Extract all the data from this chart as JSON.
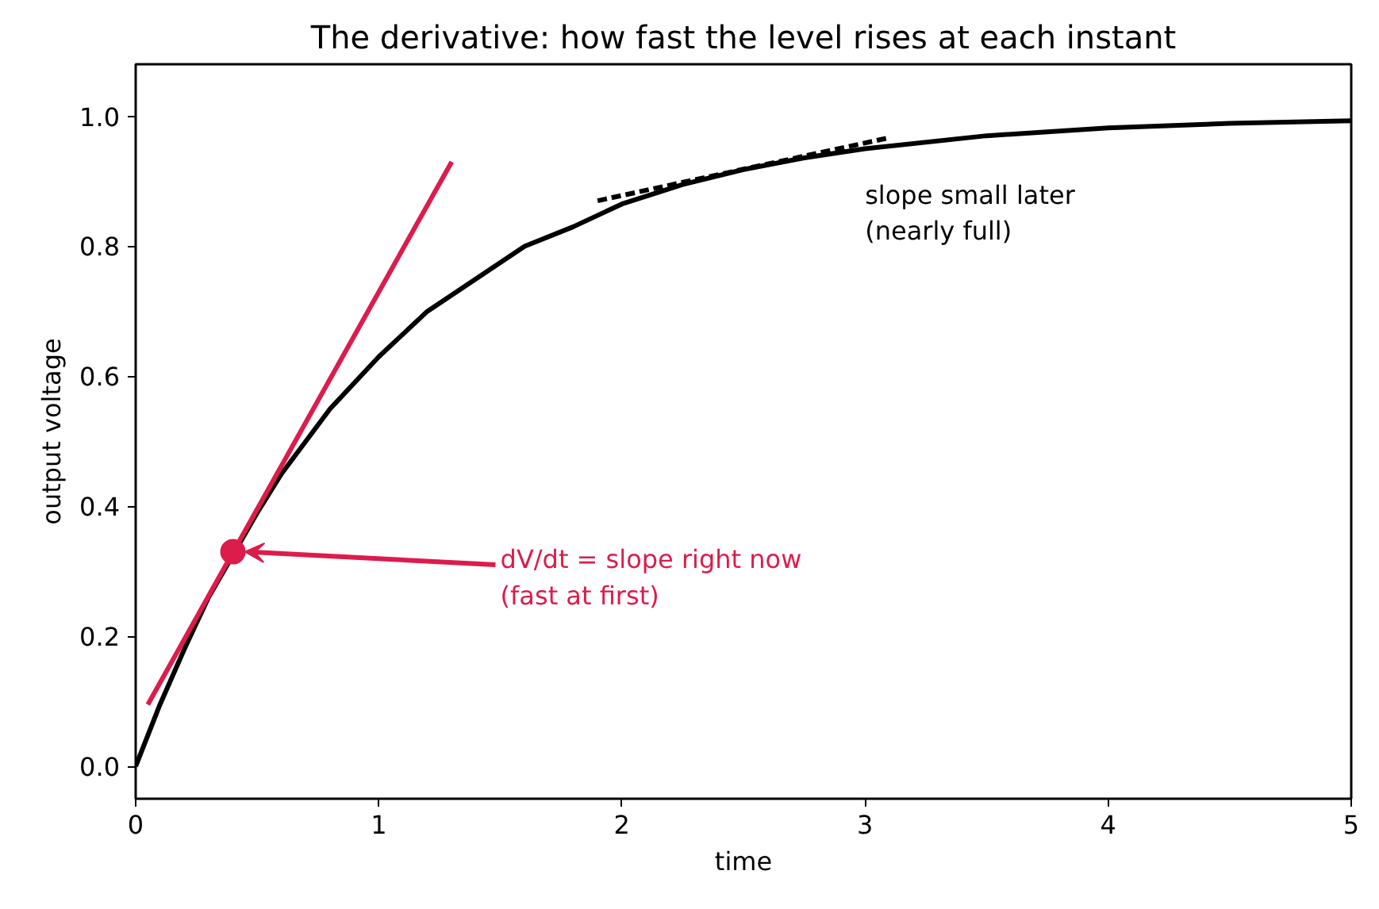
{
  "chart_data": {
    "type": "line",
    "title": "The derivative: how fast the level rises at each instant",
    "xlabel": "time",
    "ylabel": "output voltage",
    "xlim": [
      0,
      5
    ],
    "ylim": [
      -0.05,
      1.08
    ],
    "xticks": [
      0,
      1,
      2,
      3,
      4,
      5
    ],
    "yticks": [
      {
        "value": 0,
        "label": "0.0"
      },
      {
        "value": 0.2,
        "label": "0.2"
      },
      {
        "value": 0.4,
        "label": "0.4"
      },
      {
        "value": 0.6,
        "label": "0.6"
      },
      {
        "value": 0.8,
        "label": "0.8"
      },
      {
        "value": 1,
        "label": "1.0"
      }
    ],
    "grid": false,
    "series": [
      {
        "color": "#000000",
        "x": [
          0,
          0.1,
          0.2,
          0.3,
          0.5,
          0.6,
          0.8,
          1.0,
          1.2,
          1.4,
          1.6,
          1.8,
          2.0,
          2.25,
          2.5,
          2.75,
          3.0,
          3.5,
          4.0,
          4.5,
          5.0
        ],
        "values": [
          0,
          0.095,
          0.18,
          0.26,
          0.39,
          0.45,
          0.55,
          0.63,
          0.7,
          0.75,
          0.8,
          0.83,
          0.865,
          0.895,
          0.918,
          0.936,
          0.95,
          0.97,
          0.982,
          0.989,
          0.993
        ]
      },
      {
        "color": "#dc1c4b",
        "x": [
          0.05,
          1.3
        ],
        "values": [
          0.095,
          0.93
        ]
      },
      {
        "color": "#000000",
        "line_style": "dashed",
        "x": [
          1.9,
          3.1
        ],
        "values": [
          0.87,
          0.967
        ]
      },
      {
        "type": "scatter",
        "color": "#dc1c4b",
        "x": [
          0.4
        ],
        "values": [
          0.33
        ]
      }
    ],
    "annotations": [
      {
        "text": "dV/dt = slope right now\n(fast at first)",
        "x": 0.4,
        "y": 0.33
      },
      "slope small later\n(nearly full)"
    ]
  }
}
